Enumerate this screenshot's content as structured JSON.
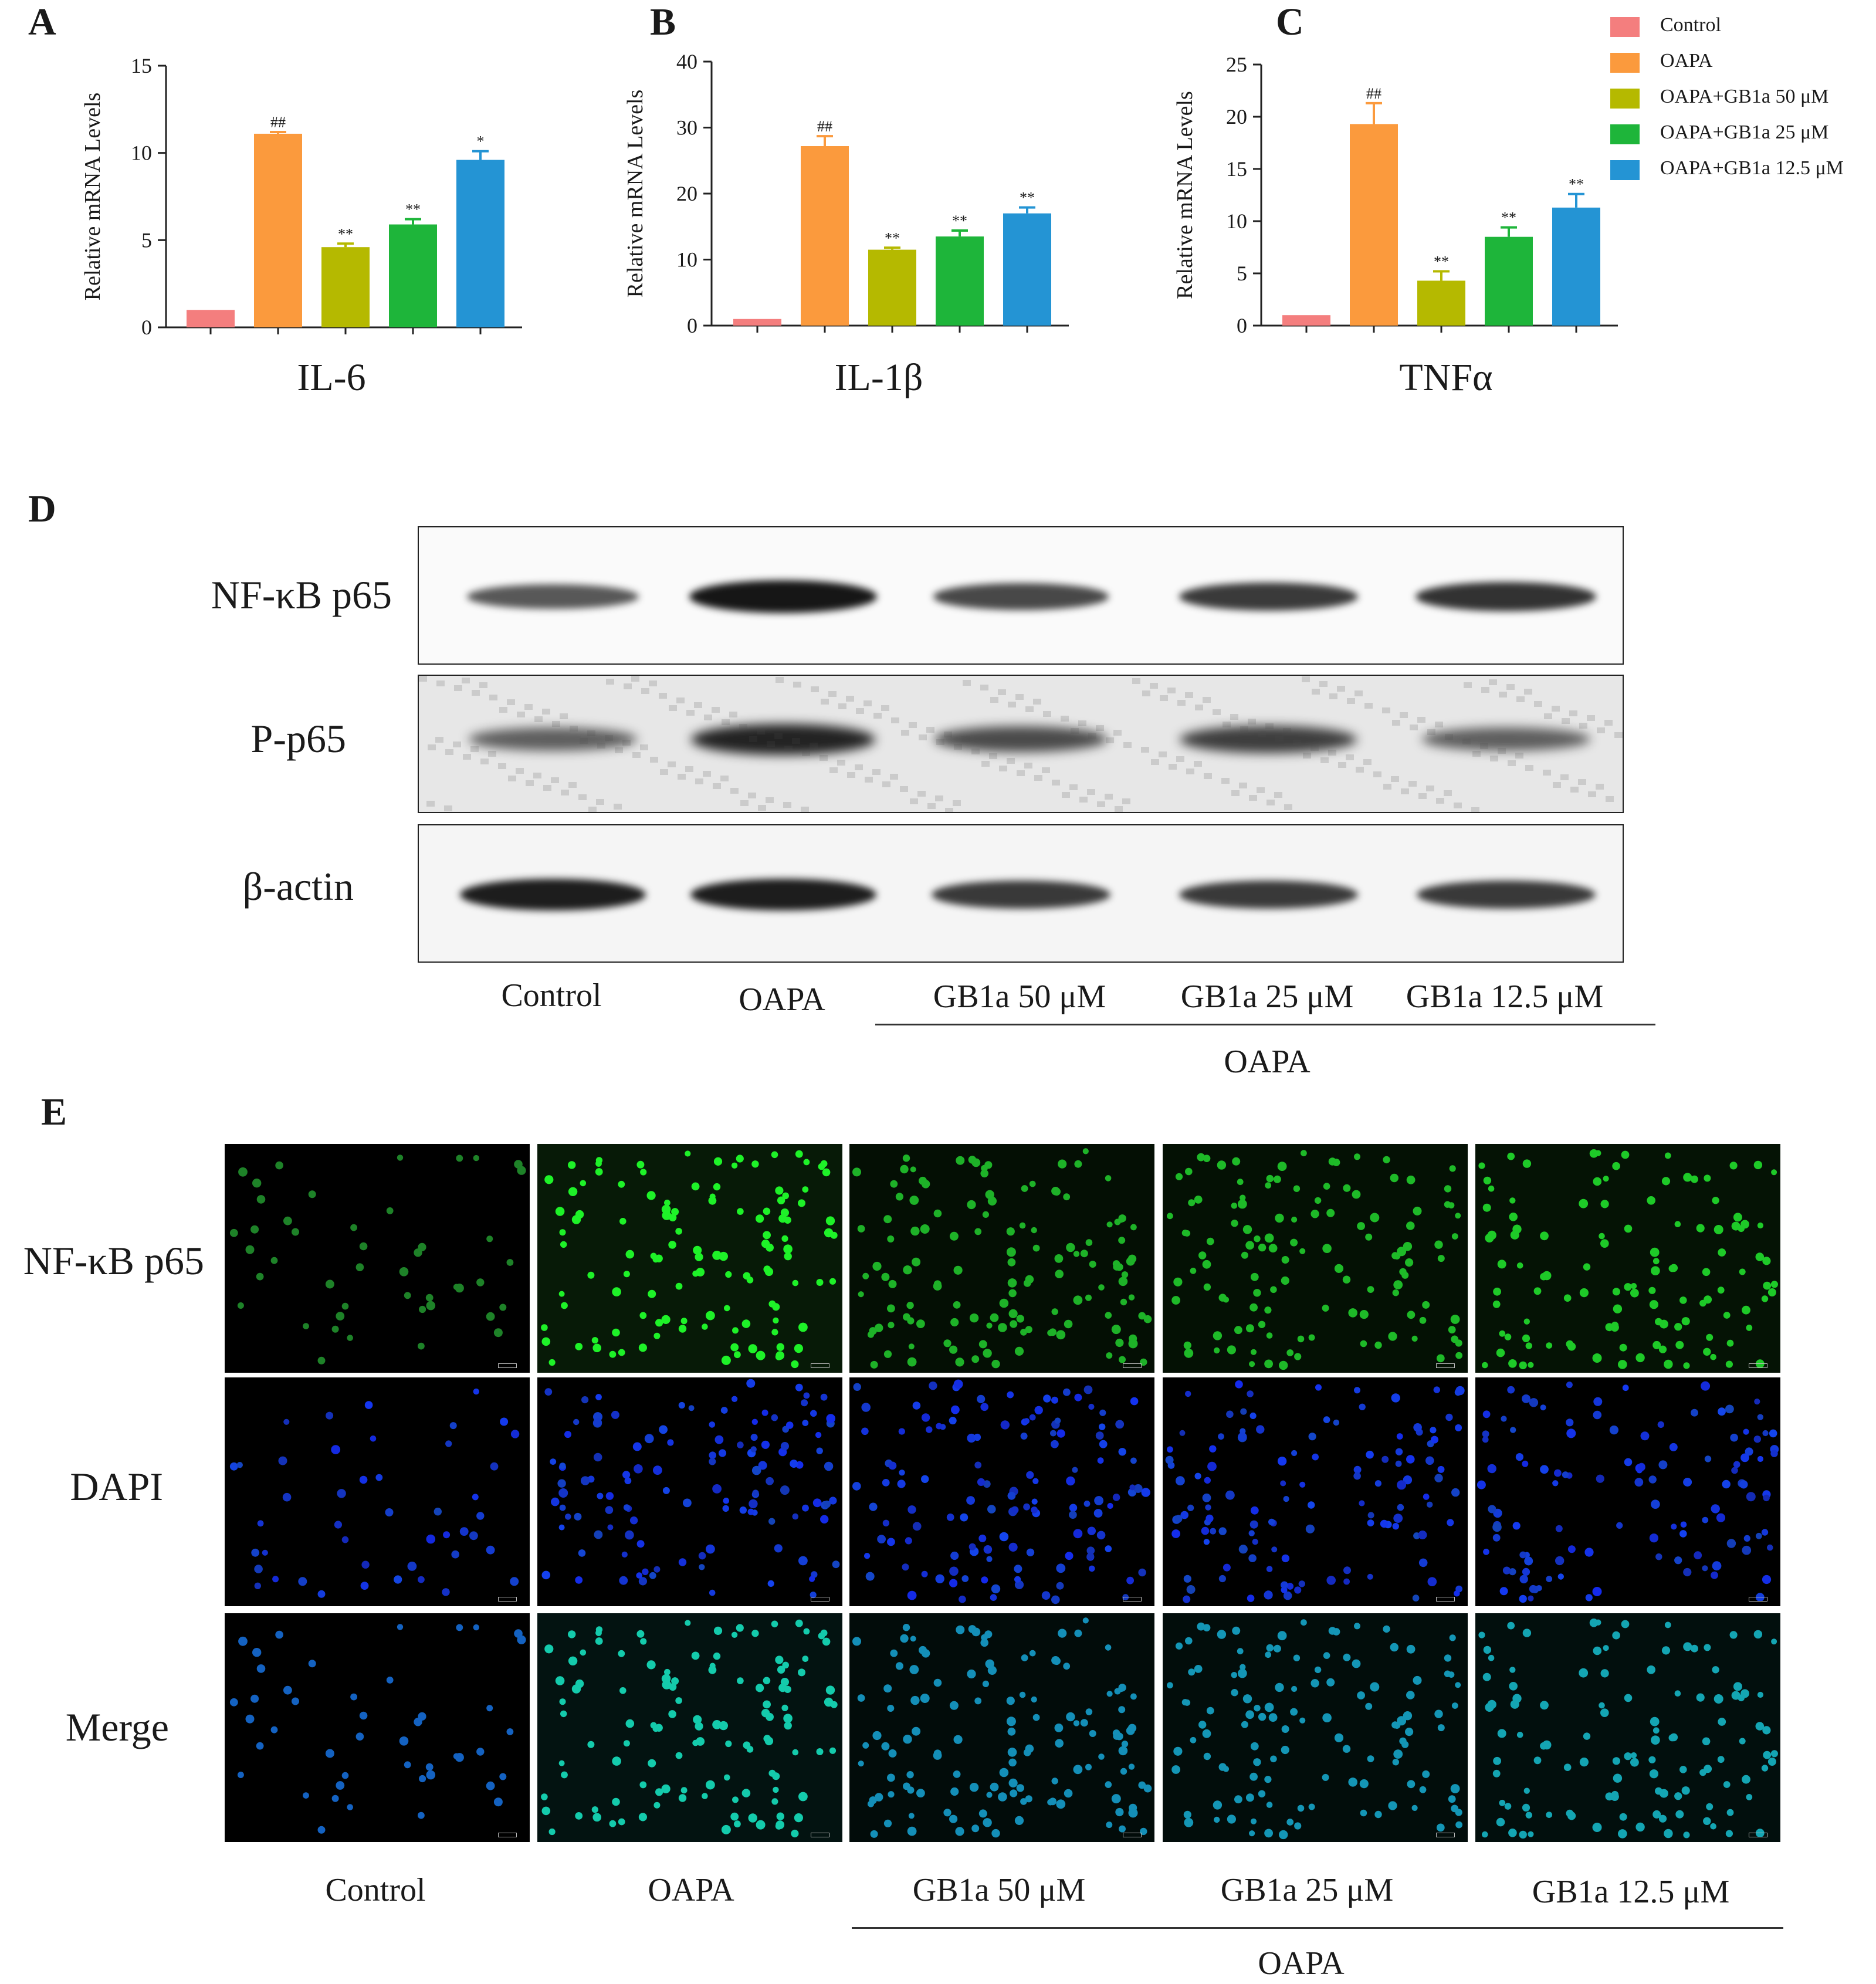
{
  "panels": {
    "a": "A",
    "b": "B",
    "c": "C",
    "d": "D",
    "e": "E"
  },
  "colors": {
    "control": "#f47e7e",
    "oapa": "#fb9a3d",
    "gb50": "#b5b900",
    "gb25": "#1eb53a",
    "gb125": "#2494d4"
  },
  "legend": [
    {
      "label": "Control",
      "color": "#f47e7e"
    },
    {
      "label": "OAPA",
      "color": "#fb9a3d"
    },
    {
      "label": "OAPA+GB1a 50 μM",
      "color": "#b5b900"
    },
    {
      "label": "OAPA+GB1a 25 μM",
      "color": "#1eb53a"
    },
    {
      "label": "OAPA+GB1a 12.5 μM",
      "color": "#2494d4"
    }
  ],
  "chart_data": [
    {
      "type": "bar",
      "title": "IL-6",
      "ylabel": "Relative mRNA Levels",
      "ylim": [
        0,
        15
      ],
      "yticks": [
        0,
        5,
        10,
        15
      ],
      "categories": [
        "Control",
        "OAPA",
        "OAPA+GB1a 50 μM",
        "OAPA+GB1a 25 μM",
        "OAPA+GB1a 12.5 μM"
      ],
      "values": [
        1.0,
        11.1,
        4.6,
        5.9,
        9.6
      ],
      "errors": [
        0,
        0.1,
        0.2,
        0.3,
        0.5
      ],
      "annotations": [
        "",
        "##",
        "**",
        "**",
        "*"
      ]
    },
    {
      "type": "bar",
      "title": "IL-1β",
      "ylabel": "Relative mRNA Levels",
      "ylim": [
        0,
        40
      ],
      "yticks": [
        0,
        10,
        20,
        30,
        40
      ],
      "categories": [
        "Control",
        "OAPA",
        "OAPA+GB1a 50 μM",
        "OAPA+GB1a 25 μM",
        "OAPA+GB1a 12.5 μM"
      ],
      "values": [
        1.0,
        27.2,
        11.5,
        13.5,
        17.0
      ],
      "errors": [
        0,
        1.5,
        0.3,
        0.9,
        0.9
      ],
      "annotations": [
        "",
        "##",
        "**",
        "**",
        "**"
      ]
    },
    {
      "type": "bar",
      "title": "TNFα",
      "ylabel": "Relative mRNA Levels",
      "ylim": [
        0,
        25
      ],
      "yticks": [
        0,
        5,
        10,
        15,
        20,
        25
      ],
      "categories": [
        "Control",
        "OAPA",
        "OAPA+GB1a 50 μM",
        "OAPA+GB1a 25 μM",
        "OAPA+GB1a 12.5 μM"
      ],
      "values": [
        1.0,
        19.3,
        4.3,
        8.5,
        11.3
      ],
      "errors": [
        0,
        2.0,
        0.9,
        0.9,
        1.3
      ],
      "annotations": [
        "",
        "##",
        "**",
        "**",
        "**"
      ]
    }
  ],
  "western_blot": {
    "rows": [
      {
        "label": "NF-κB p65",
        "intensities": [
          0.55,
          1.0,
          0.65,
          0.75,
          0.8
        ]
      },
      {
        "label": "P-p65",
        "intensities": [
          0.45,
          0.9,
          0.6,
          0.7,
          0.45
        ]
      },
      {
        "label": "β-actin",
        "intensities": [
          0.95,
          0.95,
          0.75,
          0.75,
          0.75
        ]
      }
    ],
    "lanes": [
      "Control",
      "OAPA",
      "GB1a 50 μM",
      "GB1a 25 μM",
      "GB1a 12.5 μM"
    ],
    "group_label": "OAPA"
  },
  "microscopy": {
    "rows": [
      "NF-κB p65",
      "DAPI",
      "Merge"
    ],
    "columns": [
      "Control",
      "OAPA",
      "GB1a 50 μM",
      "GB1a 25 μM",
      "GB1a 12.5 μM"
    ],
    "group_label": "OAPA"
  }
}
